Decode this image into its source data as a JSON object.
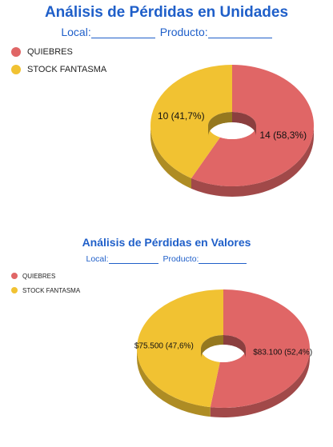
{
  "chart_data": [
    {
      "type": "pie",
      "title": "Análisis de Pérdidas en Unidades",
      "local_label": "Local:",
      "producto_label": "Producto:",
      "legend_position": "top-left",
      "series": [
        {
          "name": "QUIEBRES",
          "value": 14,
          "label": "14 (58,3%)",
          "color": "#e06666"
        },
        {
          "name": "STOCK FANTASMA",
          "value": 10,
          "label": "10 (41,7%)",
          "color": "#f1c232"
        }
      ]
    },
    {
      "type": "pie",
      "title": "Análisis de Pérdidas en Valores",
      "local_label": "Local:",
      "producto_label": "Producto:",
      "legend_position": "top-left",
      "series": [
        {
          "name": "QUIEBRES",
          "value": 83100,
          "label": "$83.100 (52,4%)",
          "color": "#e06666"
        },
        {
          "name": "STOCK FANTASMA",
          "value": 75500,
          "label": "$75.500 (47,6%)",
          "color": "#f1c232"
        }
      ]
    }
  ]
}
